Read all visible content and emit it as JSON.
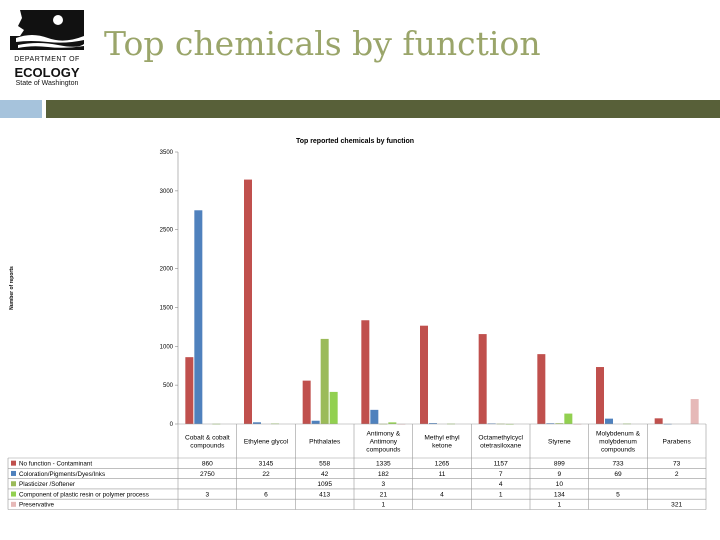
{
  "logo": {
    "line1": "DEPARTMENT OF",
    "line2": "ECOLOGY",
    "line3": "State of Washington",
    "icon": "washington-state-outline-icon"
  },
  "slide_title": "Top chemicals by function",
  "colors": {
    "title": "#9aa56a",
    "header_bar_left": "#a6c3dc",
    "header_bar_right": "#586039"
  },
  "chart_data": {
    "type": "bar",
    "title": "Top reported chemicals by function",
    "ylabel": "Number of reports",
    "xlabel": "",
    "ylim": [
      0,
      3500
    ],
    "yticks": [
      0,
      500,
      1000,
      1500,
      2000,
      2500,
      3000,
      3500
    ],
    "grid": false,
    "legend": "bottom (data table)",
    "categories": [
      [
        "Cobalt & cobalt",
        "compounds"
      ],
      [
        "Ethylene glycol"
      ],
      [
        "Phthalates"
      ],
      [
        "Antimony &",
        "Antimony",
        "compounds"
      ],
      [
        "Methyl ethyl",
        "ketone"
      ],
      [
        "Octamethylcycl",
        "otetrasiloxane"
      ],
      [
        "Styrene"
      ],
      [
        "Molybdenum &",
        "molybdenum",
        "compounds"
      ],
      [
        "Parabens"
      ]
    ],
    "series": [
      {
        "name": "No function - Contaminant",
        "color": "#c0504d",
        "values": [
          860,
          3145,
          558,
          1335,
          1265,
          1157,
          899,
          733,
          73
        ]
      },
      {
        "name": "Coloration/Pigments/Dyes/Inks",
        "color": "#4f81bd",
        "values": [
          2750,
          22,
          42,
          182,
          11,
          7,
          9,
          69,
          2
        ]
      },
      {
        "name": "Plasticizer /Softener",
        "color": "#9bbb59",
        "values": [
          null,
          null,
          1095,
          3,
          null,
          4,
          10,
          null,
          null
        ]
      },
      {
        "name": "Component of plastic resin or polymer process",
        "color": "#92d050",
        "values": [
          3,
          6,
          413,
          21,
          4,
          1,
          134,
          5,
          null
        ]
      },
      {
        "name": "Preservative",
        "color": "#e6b9b8",
        "values": [
          null,
          null,
          null,
          1,
          null,
          null,
          1,
          null,
          321
        ]
      }
    ]
  }
}
